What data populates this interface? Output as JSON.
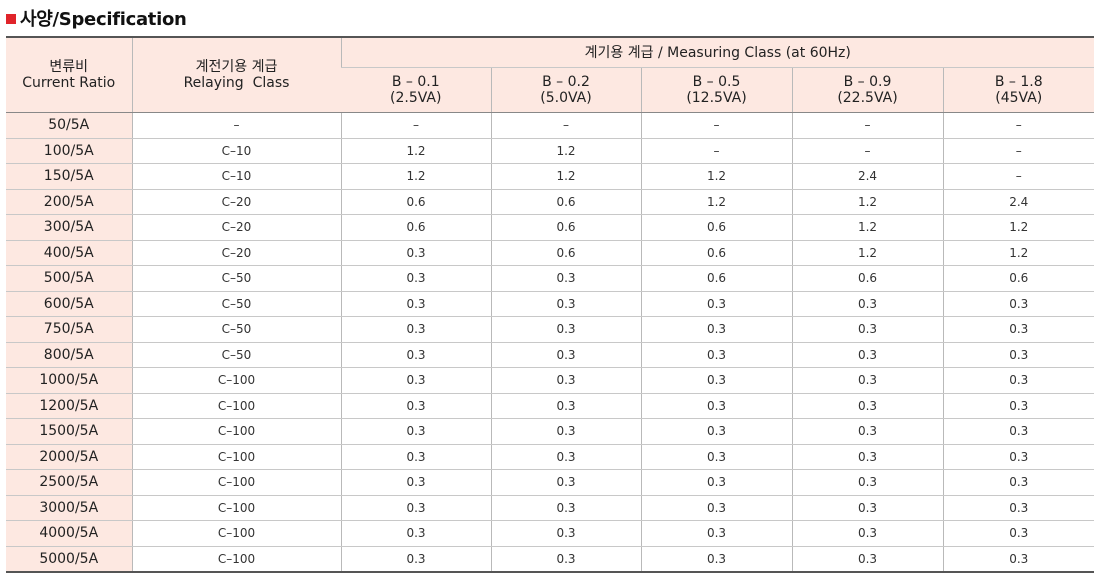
{
  "title": "사양/Specification",
  "header": {
    "ratio_ko": "변류비",
    "ratio_en": "Current Ratio",
    "relaying_ko": "계전기용 계급",
    "relaying_en": "Relaying  Class",
    "measuring": "계기용 계급 / Measuring Class (at 60Hz)",
    "burdens": [
      {
        "b": "B – 0.1",
        "va": "(2.5VA)"
      },
      {
        "b": "B – 0.2",
        "va": "(5.0VA)"
      },
      {
        "b": "B – 0.5",
        "va": "(12.5VA)"
      },
      {
        "b": "B – 0.9",
        "va": "(22.5VA)"
      },
      {
        "b": "B – 1.8",
        "va": "(45VA)"
      }
    ]
  },
  "rows": [
    {
      "ratio": "50/5A",
      "relay": "–",
      "vals": [
        "–",
        "–",
        "–",
        "–",
        "–"
      ]
    },
    {
      "ratio": "100/5A",
      "relay": "C–10",
      "vals": [
        "1.2",
        "1.2",
        "–",
        "–",
        "–"
      ]
    },
    {
      "ratio": "150/5A",
      "relay": "C–10",
      "vals": [
        "1.2",
        "1.2",
        "1.2",
        "2.4",
        "–"
      ]
    },
    {
      "ratio": "200/5A",
      "relay": "C–20",
      "vals": [
        "0.6",
        "0.6",
        "1.2",
        "1.2",
        "2.4"
      ]
    },
    {
      "ratio": "300/5A",
      "relay": "C–20",
      "vals": [
        "0.6",
        "0.6",
        "0.6",
        "1.2",
        "1.2"
      ]
    },
    {
      "ratio": "400/5A",
      "relay": "C–20",
      "vals": [
        "0.3",
        "0.6",
        "0.6",
        "1.2",
        "1.2"
      ]
    },
    {
      "ratio": "500/5A",
      "relay": "C–50",
      "vals": [
        "0.3",
        "0.3",
        "0.6",
        "0.6",
        "0.6"
      ]
    },
    {
      "ratio": "600/5A",
      "relay": "C–50",
      "vals": [
        "0.3",
        "0.3",
        "0.3",
        "0.3",
        "0.3"
      ]
    },
    {
      "ratio": "750/5A",
      "relay": "C–50",
      "vals": [
        "0.3",
        "0.3",
        "0.3",
        "0.3",
        "0.3"
      ]
    },
    {
      "ratio": "800/5A",
      "relay": "C–50",
      "vals": [
        "0.3",
        "0.3",
        "0.3",
        "0.3",
        "0.3"
      ]
    },
    {
      "ratio": "1000/5A",
      "relay": "C–100",
      "vals": [
        "0.3",
        "0.3",
        "0.3",
        "0.3",
        "0.3"
      ]
    },
    {
      "ratio": "1200/5A",
      "relay": "C–100",
      "vals": [
        "0.3",
        "0.3",
        "0.3",
        "0.3",
        "0.3"
      ]
    },
    {
      "ratio": "1500/5A",
      "relay": "C–100",
      "vals": [
        "0.3",
        "0.3",
        "0.3",
        "0.3",
        "0.3"
      ]
    },
    {
      "ratio": "2000/5A",
      "relay": "C–100",
      "vals": [
        "0.3",
        "0.3",
        "0.3",
        "0.3",
        "0.3"
      ]
    },
    {
      "ratio": "2500/5A",
      "relay": "C–100",
      "vals": [
        "0.3",
        "0.3",
        "0.3",
        "0.3",
        "0.3"
      ]
    },
    {
      "ratio": "3000/5A",
      "relay": "C–100",
      "vals": [
        "0.3",
        "0.3",
        "0.3",
        "0.3",
        "0.3"
      ]
    },
    {
      "ratio": "4000/5A",
      "relay": "C–100",
      "vals": [
        "0.3",
        "0.3",
        "0.3",
        "0.3",
        "0.3"
      ]
    },
    {
      "ratio": "5000/5A",
      "relay": "C–100",
      "vals": [
        "0.3",
        "0.3",
        "0.3",
        "0.3",
        "0.3"
      ]
    }
  ],
  "colors": {
    "accent": "#e0242a",
    "header_bg": "#fde8e1"
  }
}
